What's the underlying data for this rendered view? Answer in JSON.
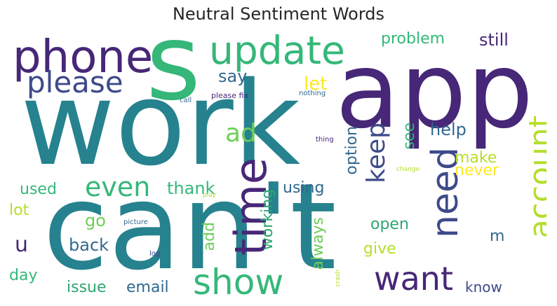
{
  "title": "Neutral Sentiment Words",
  "palette": {
    "dark_purple": "#472777",
    "indigo": "#3e4a89",
    "slate_blue": "#31688e",
    "teal": "#26828e",
    "green_teal": "#2ea572",
    "green": "#35b779",
    "light_green": "#6ece58",
    "lime": "#b5de2b",
    "yellow": "#fde725"
  },
  "words": {
    "work": "work",
    "cant": "can't",
    "app": "app",
    "s": "s",
    "phone": "phone",
    "update": "update",
    "please": "please",
    "time": "time",
    "need": "need",
    "account": "account",
    "show": "show",
    "want": "want",
    "keep": "keep",
    "even": "even",
    "ad": "ad",
    "problem": "problem",
    "still": "still",
    "say": "say",
    "let": "let",
    "help": "help",
    "see": "see",
    "option": "option",
    "make": "make",
    "never": "never",
    "thank": "thank",
    "used": "used",
    "using": "using",
    "lot": "lot",
    "go": "go",
    "u": "u",
    "back": "back",
    "add": "add",
    "working": "working",
    "always": "always",
    "open": "open",
    "give": "give",
    "m": "m",
    "day": "day",
    "issue": "issue",
    "email": "email",
    "know": "know",
    "please_fix": "please fix",
    "nothing": "nothing",
    "call": "call",
    "thing": "thing",
    "change": "change",
    "play": "play",
    "picture": "picture",
    "log": "log",
    "crash": "crash"
  }
}
